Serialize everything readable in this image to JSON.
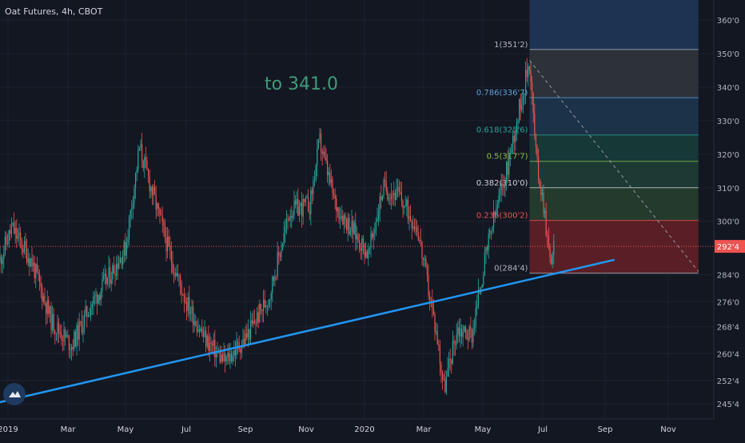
{
  "header": {
    "symbol_title": "Oat Futures, 4h, CBOT"
  },
  "annotation": {
    "text": "to 341.0",
    "color": "#3e9b7a"
  },
  "colors": {
    "background": "#131722",
    "up_candle": "#26a69a",
    "down_candle": "#ef5350",
    "trendline": "#2196f3",
    "price_line": "#ef5350",
    "price_tag_bg": "#ef5350",
    "grid": "#1e222d"
  },
  "chart_data": {
    "type": "candlestick",
    "interval": "4h",
    "xlabel": "",
    "ylabel": "",
    "x_ticks": [
      "2019",
      "Mar",
      "May",
      "Jul",
      "Sep",
      "Nov",
      "2020",
      "Mar",
      "May",
      "Jul",
      "Sep",
      "Nov"
    ],
    "y_ticks": [
      "360'0",
      "350'0",
      "340'0",
      "330'0",
      "320'0",
      "310'0",
      "300'0",
      "292'4",
      "284'0",
      "276'0",
      "268'4",
      "260'4",
      "252'4",
      "245'4"
    ],
    "ylim": [
      241,
      366
    ],
    "grid": true,
    "last_price": {
      "value": 292.5,
      "label": "292'4"
    },
    "price_path": [
      {
        "date": "2018-12-01",
        "price": 280
      },
      {
        "date": "2018-12-20",
        "price": 286
      },
      {
        "date": "2019-01-05",
        "price": 298
      },
      {
        "date": "2019-01-25",
        "price": 288
      },
      {
        "date": "2019-02-15",
        "price": 270
      },
      {
        "date": "2019-03-05",
        "price": 263
      },
      {
        "date": "2019-03-25",
        "price": 275
      },
      {
        "date": "2019-04-15",
        "price": 284
      },
      {
        "date": "2019-05-01",
        "price": 292
      },
      {
        "date": "2019-05-15",
        "price": 322
      },
      {
        "date": "2019-06-01",
        "price": 305
      },
      {
        "date": "2019-06-15",
        "price": 290
      },
      {
        "date": "2019-07-01",
        "price": 276
      },
      {
        "date": "2019-07-20",
        "price": 265
      },
      {
        "date": "2019-08-10",
        "price": 258
      },
      {
        "date": "2019-09-01",
        "price": 265
      },
      {
        "date": "2019-09-25",
        "price": 278
      },
      {
        "date": "2019-10-15",
        "price": 303
      },
      {
        "date": "2019-11-05",
        "price": 305
      },
      {
        "date": "2019-11-15",
        "price": 324
      },
      {
        "date": "2019-12-01",
        "price": 305
      },
      {
        "date": "2019-12-20",
        "price": 297
      },
      {
        "date": "2020-01-05",
        "price": 290
      },
      {
        "date": "2020-01-20",
        "price": 310
      },
      {
        "date": "2020-02-05",
        "price": 308
      },
      {
        "date": "2020-02-25",
        "price": 298
      },
      {
        "date": "2020-03-15",
        "price": 265
      },
      {
        "date": "2020-03-22",
        "price": 250
      },
      {
        "date": "2020-04-05",
        "price": 268
      },
      {
        "date": "2020-04-20",
        "price": 266
      },
      {
        "date": "2020-05-01",
        "price": 285
      },
      {
        "date": "2020-05-10",
        "price": 298
      },
      {
        "date": "2020-05-25",
        "price": 315
      },
      {
        "date": "2020-06-05",
        "price": 330
      },
      {
        "date": "2020-06-18",
        "price": 348
      },
      {
        "date": "2020-06-25",
        "price": 318
      },
      {
        "date": "2020-07-02",
        "price": 305
      },
      {
        "date": "2020-07-08",
        "price": 288
      },
      {
        "date": "2020-07-12",
        "price": 292.5
      }
    ],
    "trendline": {
      "start": {
        "date": "2018-12-01",
        "price": 244.5
      },
      "end": {
        "date": "2020-09-10",
        "price": 288.5
      }
    },
    "projection_line": {
      "start": {
        "date": "2020-06-18",
        "price": 348
      },
      "end": {
        "date": "2020-11-30",
        "price": 285
      }
    },
    "fibonacci": {
      "start_date": "2020-06-18",
      "end_date": "2020-11-30",
      "levels": [
        {
          "ratio": "1",
          "label": "1(351'2)",
          "price": 351.25,
          "label_color": "#b2b5be"
        },
        {
          "ratio": "0.786",
          "label": "0.786(336'7)",
          "price": 336.875,
          "label_color": "#5ba3d9"
        },
        {
          "ratio": "0.618",
          "label": "0.618(325'6)",
          "price": 325.75,
          "label_color": "#26a69a"
        },
        {
          "ratio": "0.5",
          "label": "0.5(317'7)",
          "price": 317.875,
          "label_color": "#8bc34a"
        },
        {
          "ratio": "0.382",
          "label": "0.382(310'0)",
          "price": 310.0,
          "label_color": "#d1d4dc"
        },
        {
          "ratio": "0.236",
          "label": "0.236(300'2)",
          "price": 300.25,
          "label_color": "#ef5350"
        },
        {
          "ratio": "0",
          "label": "0(284'4)",
          "price": 284.5,
          "label_color": "#b2b5be"
        }
      ],
      "zone_colors": [
        "#1c3352",
        "#2d313a",
        "#1b3248",
        "#163837",
        "#1c3a33",
        "#233a2c",
        "#5a1f26",
        "#4a1c24"
      ]
    }
  }
}
